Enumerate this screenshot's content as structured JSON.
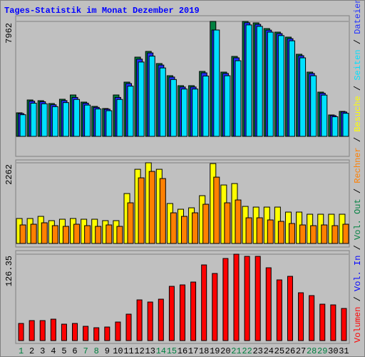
{
  "legend_separator": " / ",
  "chart_data": [
    {
      "type": "bar",
      "title": "Tages-Statistik im Monat Dezember 2019",
      "ylim": [
        0,
        7962
      ],
      "yticks": [
        7962
      ],
      "grid": true,
      "series": [
        {
          "name": "Anfragen",
          "color": "#008040",
          "values": [
            1632,
            2522,
            2473,
            2275,
            2571,
            2868,
            2374,
            2077,
            1929,
            2868,
            3758,
            5489,
            5885,
            5044,
            4203,
            3511,
            3511,
            4500,
            7962,
            4451,
            5538,
            7962,
            7862,
            7467,
            7220,
            6874,
            5687,
            4451,
            3066,
            1484,
            1731
          ]
        },
        {
          "name": "Dateien",
          "color": "#2030ff",
          "values": [
            1580,
            2440,
            2400,
            2190,
            2480,
            2700,
            2300,
            2010,
            1880,
            2700,
            3660,
            5350,
            5780,
            4940,
            4110,
            3420,
            3420,
            4400,
            7368,
            4360,
            5440,
            7870,
            7760,
            7360,
            7120,
            6770,
            5590,
            4360,
            2990,
            1440,
            1690
          ]
        },
        {
          "name": "Seiten",
          "color": "#00e0ff",
          "values": [
            1500,
            2300,
            2260,
            2060,
            2340,
            2560,
            2170,
            1900,
            1780,
            2560,
            3480,
            5150,
            5560,
            4740,
            3940,
            3280,
            3280,
            4180,
            7368,
            4200,
            5240,
            7720,
            7620,
            7220,
            6980,
            6620,
            5440,
            4200,
            2860,
            1360,
            1600
          ]
        }
      ],
      "extra_legend": []
    },
    {
      "type": "bar",
      "ylim": [
        0,
        2262
      ],
      "yticks": [
        2262
      ],
      "grid": true,
      "series": [
        {
          "name": "Besuche",
          "color": "#ffff00",
          "values": [
            700,
            700,
            760,
            640,
            680,
            700,
            680,
            680,
            640,
            640,
            1400,
            2080,
            2262,
            2080,
            1120,
            960,
            1000,
            1340,
            2240,
            1640,
            1680,
            1040,
            1020,
            1020,
            1020,
            880,
            880,
            820,
            820,
            820,
            820
          ]
        },
        {
          "name": "Rechner",
          "color": "#ff8000",
          "values": [
            520,
            540,
            580,
            500,
            480,
            540,
            500,
            480,
            520,
            480,
            1140,
            1840,
            2020,
            1820,
            860,
            760,
            860,
            1100,
            1860,
            1140,
            1220,
            720,
            720,
            660,
            620,
            560,
            520,
            500,
            520,
            500,
            540
          ]
        }
      ],
      "extra_legend": []
    },
    {
      "type": "bar",
      "ylim": [
        0,
        126.35
      ],
      "yticks": [
        126.35
      ],
      "grid": true,
      "categories": [
        "1",
        "2",
        "3",
        "4",
        "5",
        "6",
        "7",
        "8",
        "9",
        "10",
        "11",
        "12",
        "13",
        "14",
        "15",
        "16",
        "17",
        "18",
        "19",
        "20",
        "21",
        "22",
        "23",
        "24",
        "25",
        "26",
        "27",
        "28",
        "29",
        "30",
        "31"
      ],
      "category_colors": [
        "#008040",
        "#000000",
        "#000000",
        "#000000",
        "#000000",
        "#000000",
        "#008040",
        "#008040",
        "#000000",
        "#000000",
        "#000000",
        "#000000",
        "#000000",
        "#008040",
        "#008040",
        "#000000",
        "#000000",
        "#000000",
        "#000000",
        "#000000",
        "#008040",
        "#008040",
        "#000000",
        "#000000",
        "#000000",
        "#000000",
        "#000000",
        "#008040",
        "#008040",
        "#000000",
        "#000000"
      ],
      "series": [
        {
          "name": "Volumen",
          "color": "#ff0000",
          "values": [
            25.06,
            29.23,
            29.23,
            31.32,
            24.01,
            25.06,
            20.88,
            18.79,
            19.84,
            27.14,
            38.63,
            59.51,
            56.38,
            60.55,
            79.34,
            81.43,
            85.61,
            110.66,
            98.14,
            120.06,
            126.35,
            123.19,
            123.19,
            106.49,
            88.74,
            93.96,
            69.95,
            65.77,
            53.24,
            52.2,
            46.98
          ]
        }
      ],
      "extra_legend": [
        {
          "name": "Vol. In",
          "color": "#0000ff"
        },
        {
          "name": "Vol. Out",
          "color": "#008040"
        }
      ]
    }
  ]
}
